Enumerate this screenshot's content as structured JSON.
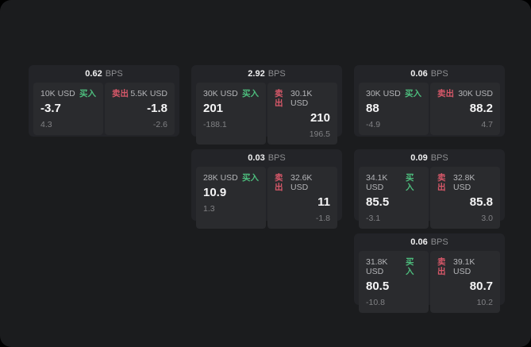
{
  "labels": {
    "bps": "BPS",
    "buy": "买入",
    "sell": "卖出"
  },
  "colors": {
    "window_bg": "#1b1c1e",
    "card_bg": "#232428",
    "tile_bg": "#2a2b2e",
    "buy_green": "#4dbd7d",
    "sell_red": "#d75869",
    "price_white": "#f5f5f6",
    "label_gray": "#b4b5b8",
    "delta_gray": "#808184"
  },
  "cards": [
    {
      "row": 1,
      "col": 1,
      "spread": "0.62",
      "buy": {
        "size": "10K USD",
        "price": "-3.7",
        "delta": "4.3"
      },
      "sell": {
        "size": "5.5K USD",
        "price": "-1.8",
        "delta": "-2.6"
      }
    },
    {
      "row": 1,
      "col": 2,
      "spread": "2.92",
      "buy": {
        "size": "30K USD",
        "price": "201",
        "delta": "-188.1"
      },
      "sell": {
        "size": "30.1K USD",
        "price": "210",
        "delta": "196.5"
      }
    },
    {
      "row": 1,
      "col": 3,
      "spread": "0.06",
      "buy": {
        "size": "30K USD",
        "price": "88",
        "delta": "-4.9"
      },
      "sell": {
        "size": "30K USD",
        "price": "88.2",
        "delta": "4.7"
      }
    },
    {
      "row": 2,
      "col": 2,
      "spread": "0.03",
      "buy": {
        "size": "28K USD",
        "price": "10.9",
        "delta": "1.3"
      },
      "sell": {
        "size": "32.6K USD",
        "price": "11",
        "delta": "-1.8"
      }
    },
    {
      "row": 2,
      "col": 3,
      "spread": "0.09",
      "buy": {
        "size": "34.1K USD",
        "price": "85.5",
        "delta": "-3.1"
      },
      "sell": {
        "size": "32.8K USD",
        "price": "85.8",
        "delta": "3.0"
      }
    },
    {
      "row": 3,
      "col": 3,
      "spread": "0.06",
      "buy": {
        "size": "31.8K USD",
        "price": "80.5",
        "delta": "-10.8"
      },
      "sell": {
        "size": "39.1K USD",
        "price": "80.7",
        "delta": "10.2"
      }
    }
  ]
}
